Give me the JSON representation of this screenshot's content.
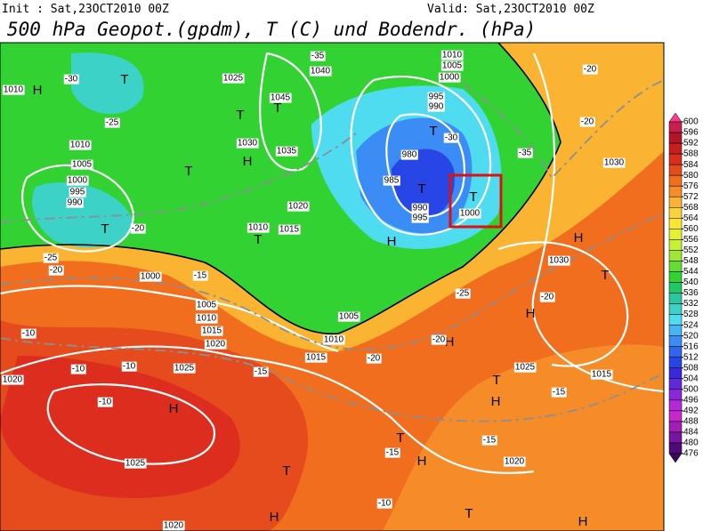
{
  "header": {
    "init": "Init : Sat,23OCT2010 00Z",
    "valid": "Valid: Sat,23OCT2010 00Z",
    "title": "500 hPa Geopot.(gpdm), T (C) und Bodendr. (hPa)"
  },
  "colorbar": {
    "ticks": [
      600,
      596,
      592,
      588,
      584,
      580,
      576,
      572,
      568,
      564,
      560,
      556,
      552,
      548,
      544,
      540,
      536,
      532,
      528,
      524,
      520,
      516,
      512,
      508,
      504,
      500,
      496,
      492,
      488,
      484,
      480,
      476
    ],
    "colors": [
      "#ff3c8c",
      "#c81e50",
      "#b41428",
      "#c81e1e",
      "#dc2d1e",
      "#e64b1e",
      "#f06e1e",
      "#f58c28",
      "#fab432",
      "#fad23c",
      "#fae632",
      "#e6f032",
      "#c8f032",
      "#a0e632",
      "#64dc32",
      "#32d232",
      "#1ec864",
      "#28c8a0",
      "#3cd2c8",
      "#50dcf0",
      "#46b4f5",
      "#3c8cf5",
      "#3264f0",
      "#2846e6",
      "#3c28dc",
      "#6428dc",
      "#8c28dc",
      "#b428dc",
      "#c828c8",
      "#a01eb4",
      "#7814a0",
      "#500a78",
      "#3c0a5a"
    ]
  },
  "map": {
    "symbols": [
      "H",
      "T",
      "T",
      "T",
      "H",
      "T",
      "T",
      "T",
      "H",
      "T",
      "T",
      "T",
      "H",
      "T",
      "H",
      "H",
      "T",
      "H",
      "H",
      "T",
      "H",
      "T",
      "H",
      "T",
      "H"
    ],
    "labels": [
      "1010",
      "-30",
      "1040",
      "1025",
      "1045",
      "1030",
      "1035",
      "1010",
      "1005",
      "1000",
      "995",
      "990",
      "-30",
      "980",
      "985",
      "990",
      "995",
      "1000",
      "1020",
      "1015",
      "1010",
      "-25",
      "1010",
      "1005",
      "1000",
      "995",
      "990",
      "-20",
      "1000",
      "-15",
      "1005",
      "1010",
      "1015",
      "1005",
      "1010",
      "1015",
      "1020",
      "-10",
      "-10",
      "-10",
      "1025",
      "-15",
      "1020",
      "-10",
      "1025",
      "-15",
      "-15",
      "1020",
      "-10",
      "1020",
      "1030",
      "-20",
      "1025",
      "1015",
      "-15",
      "-25",
      "-20",
      "-20",
      "-35",
      "-20",
      "-20",
      "-35",
      "1030",
      "-25",
      "-20"
    ]
  }
}
